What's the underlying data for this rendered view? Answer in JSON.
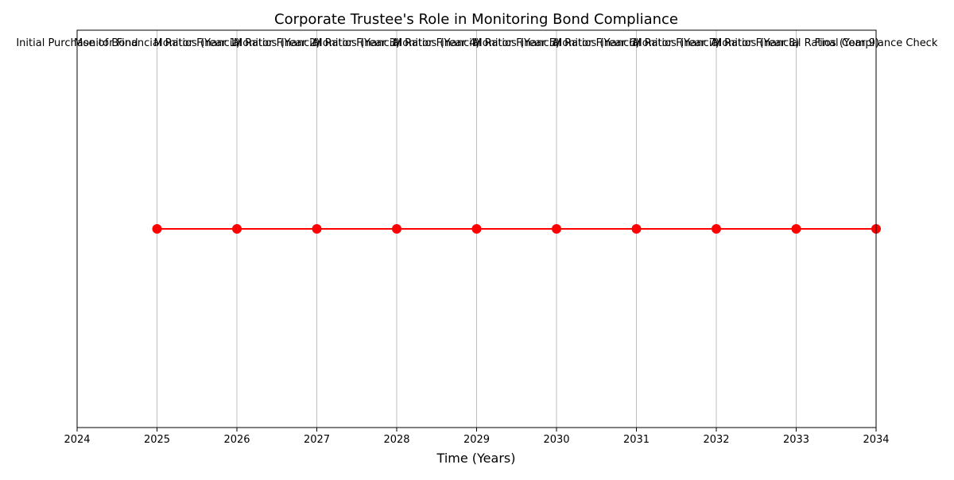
{
  "chart_data": {
    "type": "line",
    "title": "Corporate Trustee's Role in Monitoring Bond Compliance",
    "xlabel": "Time (Years)",
    "ylabel": "",
    "xlim": [
      2024,
      2034
    ],
    "x_ticks": [
      "2024",
      "2025",
      "2026",
      "2027",
      "2028",
      "2029",
      "2030",
      "2031",
      "2032",
      "2033",
      "2034"
    ],
    "grid": "vertical",
    "legend": "none",
    "series": [
      {
        "color": "#ff0000",
        "x": [
          2025,
          2026,
          2027,
          2028,
          2029,
          2030,
          2031,
          2032,
          2033,
          2034
        ],
        "y": [
          1,
          1,
          1,
          1,
          1,
          1,
          1,
          1,
          1,
          1
        ]
      }
    ],
    "events": [
      {
        "year": 2024,
        "label": "Initial Purchase of Bond"
      },
      {
        "year": 2025,
        "label": "Monitor Financial Ratios (Year 1)"
      },
      {
        "year": 2026,
        "label": "Monitor Financial Ratios (Year 2)"
      },
      {
        "year": 2027,
        "label": "Monitor Financial Ratios (Year 3)"
      },
      {
        "year": 2028,
        "label": "Monitor Financial Ratios (Year 4)"
      },
      {
        "year": 2029,
        "label": "Monitor Financial Ratios (Year 5)"
      },
      {
        "year": 2030,
        "label": "Monitor Financial Ratios (Year 6)"
      },
      {
        "year": 2031,
        "label": "Monitor Financial Ratios (Year 7)"
      },
      {
        "year": 2032,
        "label": "Monitor Financial Ratios (Year 8)"
      },
      {
        "year": 2033,
        "label": "Monitor Financial Ratios (Year 9)"
      },
      {
        "year": 2034,
        "label": "Final Compliance Check"
      }
    ]
  }
}
